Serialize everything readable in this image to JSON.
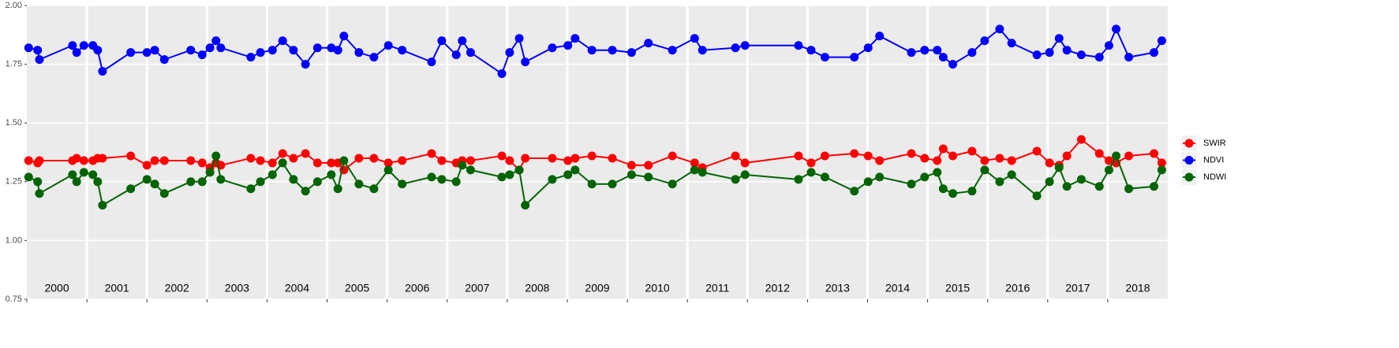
{
  "chart_data": {
    "type": "line",
    "x": [
      2000.03,
      2000.18,
      2000.21,
      2000.76,
      2000.83,
      2000.95,
      2001.1,
      2001.18,
      2001.26,
      2001.73,
      2002.0,
      2002.13,
      2002.29,
      2002.73,
      2002.92,
      2003.05,
      2003.15,
      2003.23,
      2003.73,
      2003.89,
      2004.09,
      2004.26,
      2004.44,
      2004.64,
      2004.84,
      2005.07,
      2005.18,
      2005.28,
      2005.53,
      2005.78,
      2006.02,
      2006.25,
      2006.74,
      2006.91,
      2007.15,
      2007.25,
      2007.39,
      2007.91,
      2008.04,
      2008.2,
      2008.3,
      2008.75,
      2009.01,
      2009.13,
      2009.41,
      2009.75,
      2010.07,
      2010.35,
      2010.75,
      2011.12,
      2011.25,
      2011.8,
      2011.96,
      2012.85,
      2013.06,
      2013.29,
      2013.78,
      2014.01,
      2014.2,
      2014.73,
      2014.95,
      2015.16,
      2015.26,
      2015.42,
      2015.74,
      2015.95,
      2016.2,
      2016.4,
      2016.82,
      2017.03,
      2017.19,
      2017.32,
      2017.56,
      2017.86,
      2018.02,
      2018.14,
      2018.35,
      2018.77,
      2018.9
    ],
    "series": [
      {
        "name": "SWIR",
        "color": "#ff0000",
        "values": [
          1.34,
          1.33,
          1.34,
          1.34,
          1.35,
          1.34,
          1.34,
          1.35,
          1.35,
          1.36,
          1.32,
          1.34,
          1.34,
          1.34,
          1.33,
          1.31,
          1.33,
          1.32,
          1.35,
          1.34,
          1.33,
          1.37,
          1.35,
          1.37,
          1.33,
          1.33,
          1.33,
          1.3,
          1.35,
          1.35,
          1.33,
          1.34,
          1.37,
          1.34,
          1.33,
          1.34,
          1.34,
          1.36,
          1.34,
          1.3,
          1.35,
          1.35,
          1.34,
          1.35,
          1.36,
          1.35,
          1.32,
          1.32,
          1.36,
          1.33,
          1.31,
          1.36,
          1.33,
          1.36,
          1.33,
          1.36,
          1.37,
          1.36,
          1.34,
          1.37,
          1.35,
          1.34,
          1.39,
          1.36,
          1.38,
          1.34,
          1.35,
          1.34,
          1.38,
          1.33,
          1.32,
          1.36,
          1.43,
          1.37,
          1.34,
          1.33,
          1.36,
          1.37,
          1.33
        ]
      },
      {
        "name": "NDVI",
        "color": "#0000ff",
        "values": [
          1.82,
          1.81,
          1.77,
          1.83,
          1.8,
          1.83,
          1.83,
          1.81,
          1.72,
          1.8,
          1.8,
          1.81,
          1.77,
          1.81,
          1.79,
          1.82,
          1.85,
          1.82,
          1.78,
          1.8,
          1.81,
          1.85,
          1.81,
          1.75,
          1.82,
          1.82,
          1.81,
          1.87,
          1.8,
          1.78,
          1.83,
          1.81,
          1.76,
          1.85,
          1.79,
          1.85,
          1.8,
          1.71,
          1.8,
          1.86,
          1.76,
          1.82,
          1.83,
          1.86,
          1.81,
          1.81,
          1.8,
          1.84,
          1.81,
          1.86,
          1.81,
          1.82,
          1.83,
          1.83,
          1.81,
          1.78,
          1.78,
          1.82,
          1.87,
          1.8,
          1.81,
          1.81,
          1.78,
          1.75,
          1.8,
          1.85,
          1.9,
          1.84,
          1.79,
          1.8,
          1.86,
          1.81,
          1.79,
          1.78,
          1.83,
          1.9,
          1.78,
          1.8,
          1.85
        ]
      },
      {
        "name": "NDWI",
        "color": "#006400",
        "values": [
          1.27,
          1.25,
          1.2,
          1.28,
          1.25,
          1.29,
          1.28,
          1.25,
          1.15,
          1.22,
          1.26,
          1.24,
          1.2,
          1.25,
          1.25,
          1.29,
          1.36,
          1.26,
          1.22,
          1.25,
          1.28,
          1.33,
          1.26,
          1.21,
          1.25,
          1.28,
          1.22,
          1.34,
          1.24,
          1.22,
          1.3,
          1.24,
          1.27,
          1.26,
          1.25,
          1.32,
          1.3,
          1.27,
          1.28,
          1.3,
          1.15,
          1.26,
          1.28,
          1.3,
          1.24,
          1.24,
          1.28,
          1.27,
          1.24,
          1.3,
          1.29,
          1.26,
          1.28,
          1.26,
          1.29,
          1.27,
          1.21,
          1.25,
          1.27,
          1.24,
          1.27,
          1.29,
          1.22,
          1.2,
          1.21,
          1.3,
          1.25,
          1.28,
          1.19,
          1.25,
          1.31,
          1.23,
          1.26,
          1.23,
          1.3,
          1.36,
          1.22,
          1.23,
          1.3
        ]
      }
    ],
    "xlim": [
      2000,
      2019
    ],
    "xticks": [
      {
        "value": 2000,
        "label": "2000"
      },
      {
        "value": 2001,
        "label": "2001"
      },
      {
        "value": 2002,
        "label": "2002"
      },
      {
        "value": 2003,
        "label": "2003"
      },
      {
        "value": 2004,
        "label": "2004"
      },
      {
        "value": 2005,
        "label": "2005"
      },
      {
        "value": 2006,
        "label": "2006"
      },
      {
        "value": 2007,
        "label": "2007"
      },
      {
        "value": 2008,
        "label": "2008"
      },
      {
        "value": 2009,
        "label": "2009"
      },
      {
        "value": 2010,
        "label": "2010"
      },
      {
        "value": 2011,
        "label": "2011"
      },
      {
        "value": 2012,
        "label": "2012"
      },
      {
        "value": 2013,
        "label": "2013"
      },
      {
        "value": 2014,
        "label": "2014"
      },
      {
        "value": 2015,
        "label": "2015"
      },
      {
        "value": 2016,
        "label": "2016"
      },
      {
        "value": 2017,
        "label": "2017"
      },
      {
        "value": 2018,
        "label": "2018"
      }
    ],
    "ylim": [
      0.75,
      2
    ],
    "yticks": [
      {
        "value": 0.75,
        "label": "0.75"
      },
      {
        "value": 1,
        "label": "1.00"
      },
      {
        "value": 1.25,
        "label": "1.25"
      },
      {
        "value": 1.5,
        "label": "1.50"
      },
      {
        "value": 1.75,
        "label": "1.75"
      },
      {
        "value": 2,
        "label": "2.00"
      }
    ],
    "grid": true,
    "legend": "right"
  }
}
